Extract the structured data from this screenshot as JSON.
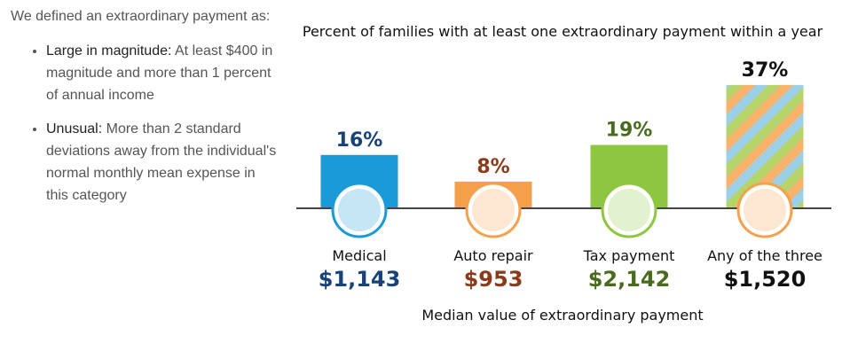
{
  "intro": "We defined an extraordinary payment as:",
  "bullets": [
    {
      "term": "Large in magnitude:",
      "text": "At least $400 in magnitude and more than 1 percent of annual income"
    },
    {
      "term": "Unusual:",
      "text": "More than 2 standard deviations away from the individual's normal monthly mean expense in this category"
    }
  ],
  "chart_data": {
    "type": "bar",
    "title": "Percent of families with at least one extraordinary payment within a year",
    "categories": [
      "Medical",
      "Auto repair",
      "Tax payment",
      "Any of the three"
    ],
    "values": [
      16,
      8,
      19,
      37
    ],
    "value_labels": [
      "16%",
      "8%",
      "19%",
      "37%"
    ],
    "colors": [
      "#1a9ad6",
      "#f5a04a",
      "#8dc63f",
      "stripes"
    ],
    "label_colors": [
      "#17427a",
      "#8b3a1a",
      "#4a6b1e",
      "#111111"
    ],
    "medians": [
      1143,
      953,
      2142,
      1520
    ],
    "median_labels": [
      "$1,143",
      "$953",
      "$2,142",
      "$1,520"
    ],
    "x_label": "Median value of extraordinary payment"
  }
}
